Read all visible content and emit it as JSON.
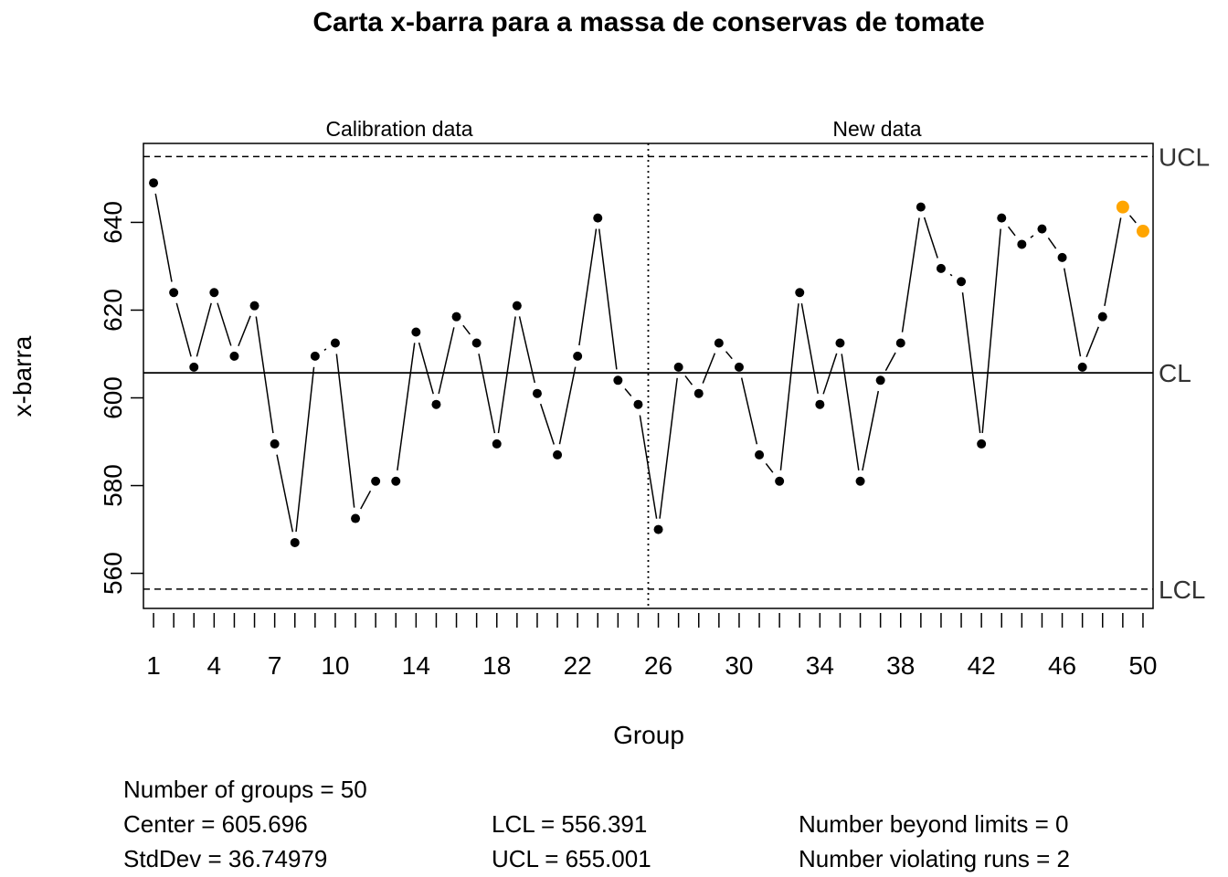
{
  "chart_data": {
    "type": "scatter",
    "title": "Carta x-barra para a massa de conservas de tomate",
    "xlabel": "Group",
    "ylabel": "x-barra",
    "section_labels": [
      "Calibration data",
      "New data"
    ],
    "calibration_groups": 25,
    "x_ticks": [
      1,
      4,
      7,
      10,
      14,
      18,
      22,
      26,
      30,
      34,
      38,
      42,
      46,
      50
    ],
    "y_ticks": [
      560,
      580,
      600,
      620,
      640
    ],
    "xlim": [
      0.5,
      50.5
    ],
    "ylim": [
      552,
      658
    ],
    "limit_labels": {
      "ucl": "UCL",
      "cl": "CL",
      "lcl": "LCL"
    },
    "center": 605.696,
    "lcl": 556.391,
    "ucl": 655.001,
    "x": [
      1,
      2,
      3,
      4,
      5,
      6,
      7,
      8,
      9,
      10,
      11,
      12,
      13,
      14,
      15,
      16,
      17,
      18,
      19,
      20,
      21,
      22,
      23,
      24,
      25,
      26,
      27,
      28,
      29,
      30,
      31,
      32,
      33,
      34,
      35,
      36,
      37,
      38,
      39,
      40,
      41,
      42,
      43,
      44,
      45,
      46,
      47,
      48,
      49,
      50
    ],
    "values": [
      649,
      624,
      607,
      624,
      609.5,
      621,
      589.5,
      567,
      609.5,
      612.5,
      572.5,
      581,
      581,
      615,
      598.5,
      618.5,
      612.5,
      589.5,
      621,
      601,
      587,
      609.5,
      641,
      604,
      598.5,
      570,
      607,
      601,
      612.5,
      607,
      587,
      581,
      624,
      598.5,
      612.5,
      581,
      604,
      612.5,
      643.5,
      629.5,
      626.5,
      589.5,
      641,
      635,
      638.5,
      632,
      607,
      618.5,
      643.5,
      638
    ],
    "violating_indices": [
      49,
      50
    ],
    "colors": {
      "point": "#000000",
      "violation": "#FFA500",
      "line": "#000000"
    }
  },
  "stats": {
    "groups": "Number of groups = 50",
    "center": "Center = 605.696",
    "stddev": "StdDev = 36.74979",
    "lcl": "LCL = 556.391",
    "ucl": "UCL = 655.001",
    "beyond": "Number beyond limits = 0",
    "violating": "Number violating runs = 2"
  }
}
